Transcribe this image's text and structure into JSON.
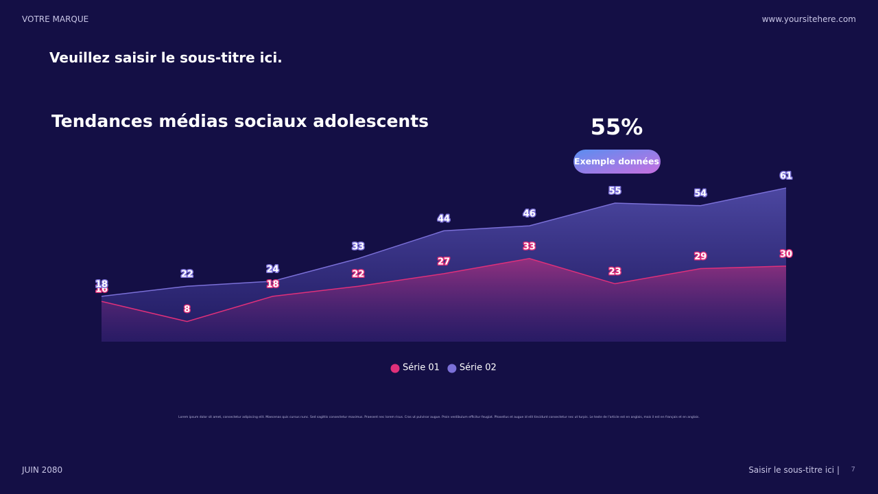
{
  "header": {
    "brand": "VOTRE MARQUE",
    "website": "www.yoursitehere.com",
    "subtitle": "Veuillez saisir le sous-titre ici."
  },
  "chart_data": {
    "type": "area",
    "title": "Tendances médias sociaux adolescents",
    "categories": [
      null,
      null,
      null,
      null,
      null,
      null,
      null,
      null,
      null
    ],
    "series": [
      {
        "name": "Série 01",
        "color": "#e0307a",
        "values": [
          16,
          8,
          18,
          22,
          27,
          33,
          23,
          29,
          30
        ]
      },
      {
        "name": "Série 02",
        "color": "#7b70d8",
        "values": [
          18,
          22,
          24,
          33,
          44,
          46,
          55,
          54,
          61
        ]
      }
    ],
    "callout": {
      "value": "55%",
      "label": "Exemple données"
    },
    "legend": "bottom"
  },
  "body_text": "Lorem ipsum dolor sit amet, consectetur adipiscing elit. Maecenas quis cursus nunc. Sed sagittis consectetur maximus. Praesent nec lorem risus. Cras ut pulvinar augue. Proin vestibulum efficitur feugiat. Phasellus et augue id elit tincidunt consectetur nec ut turpis. Le texte de l'article est en anglais, mais il est en français et en anglais.",
  "footer": {
    "date": "JUIN 2080",
    "subtitle": "Saisir le sous-titre ici |",
    "page": "7"
  }
}
